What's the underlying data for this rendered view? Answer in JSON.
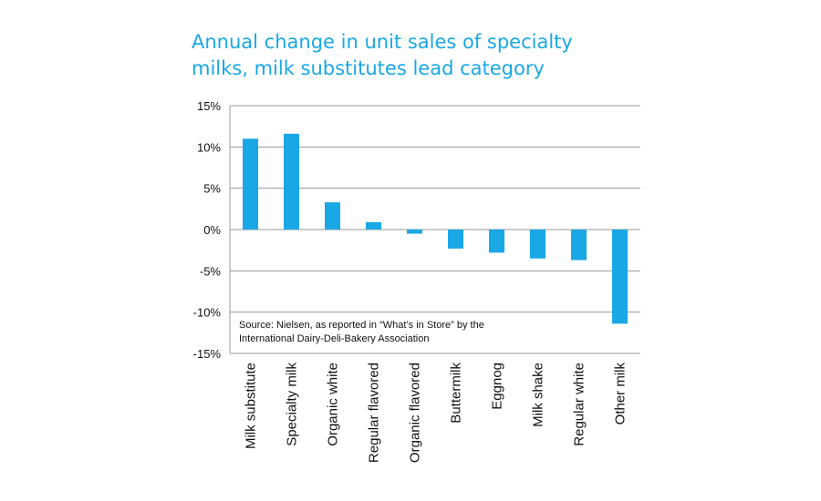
{
  "chart_data": {
    "type": "bar",
    "title_lines": [
      "Annual change in unit sales of specialty",
      "milks, milk substitutes lead category"
    ],
    "categories": [
      "Milk substitute",
      "Specialty milk",
      "Organic white",
      "Regular flavored",
      "Organic flavored",
      "Buttermilk",
      "Eggnog",
      "Milk shake",
      "Regular white",
      "Other milk"
    ],
    "values": [
      11.0,
      11.6,
      3.3,
      0.9,
      -0.5,
      -2.3,
      -2.8,
      -3.5,
      -3.7,
      -11.4
    ],
    "ylim": [
      -15,
      15
    ],
    "yticks": [
      15,
      10,
      5,
      0,
      -5,
      -10,
      -15
    ],
    "ytick_labels": [
      "15%",
      "10%",
      "5%",
      "0%",
      "-5%",
      "-10%",
      "-15%"
    ],
    "bar_color": "#1aa7e6",
    "grid": "horizontal",
    "annotation": [
      "Source: Nielsen, as reported in “What’s in Store” by the",
      "International Dairy-Deli-Bakery Association"
    ]
  }
}
